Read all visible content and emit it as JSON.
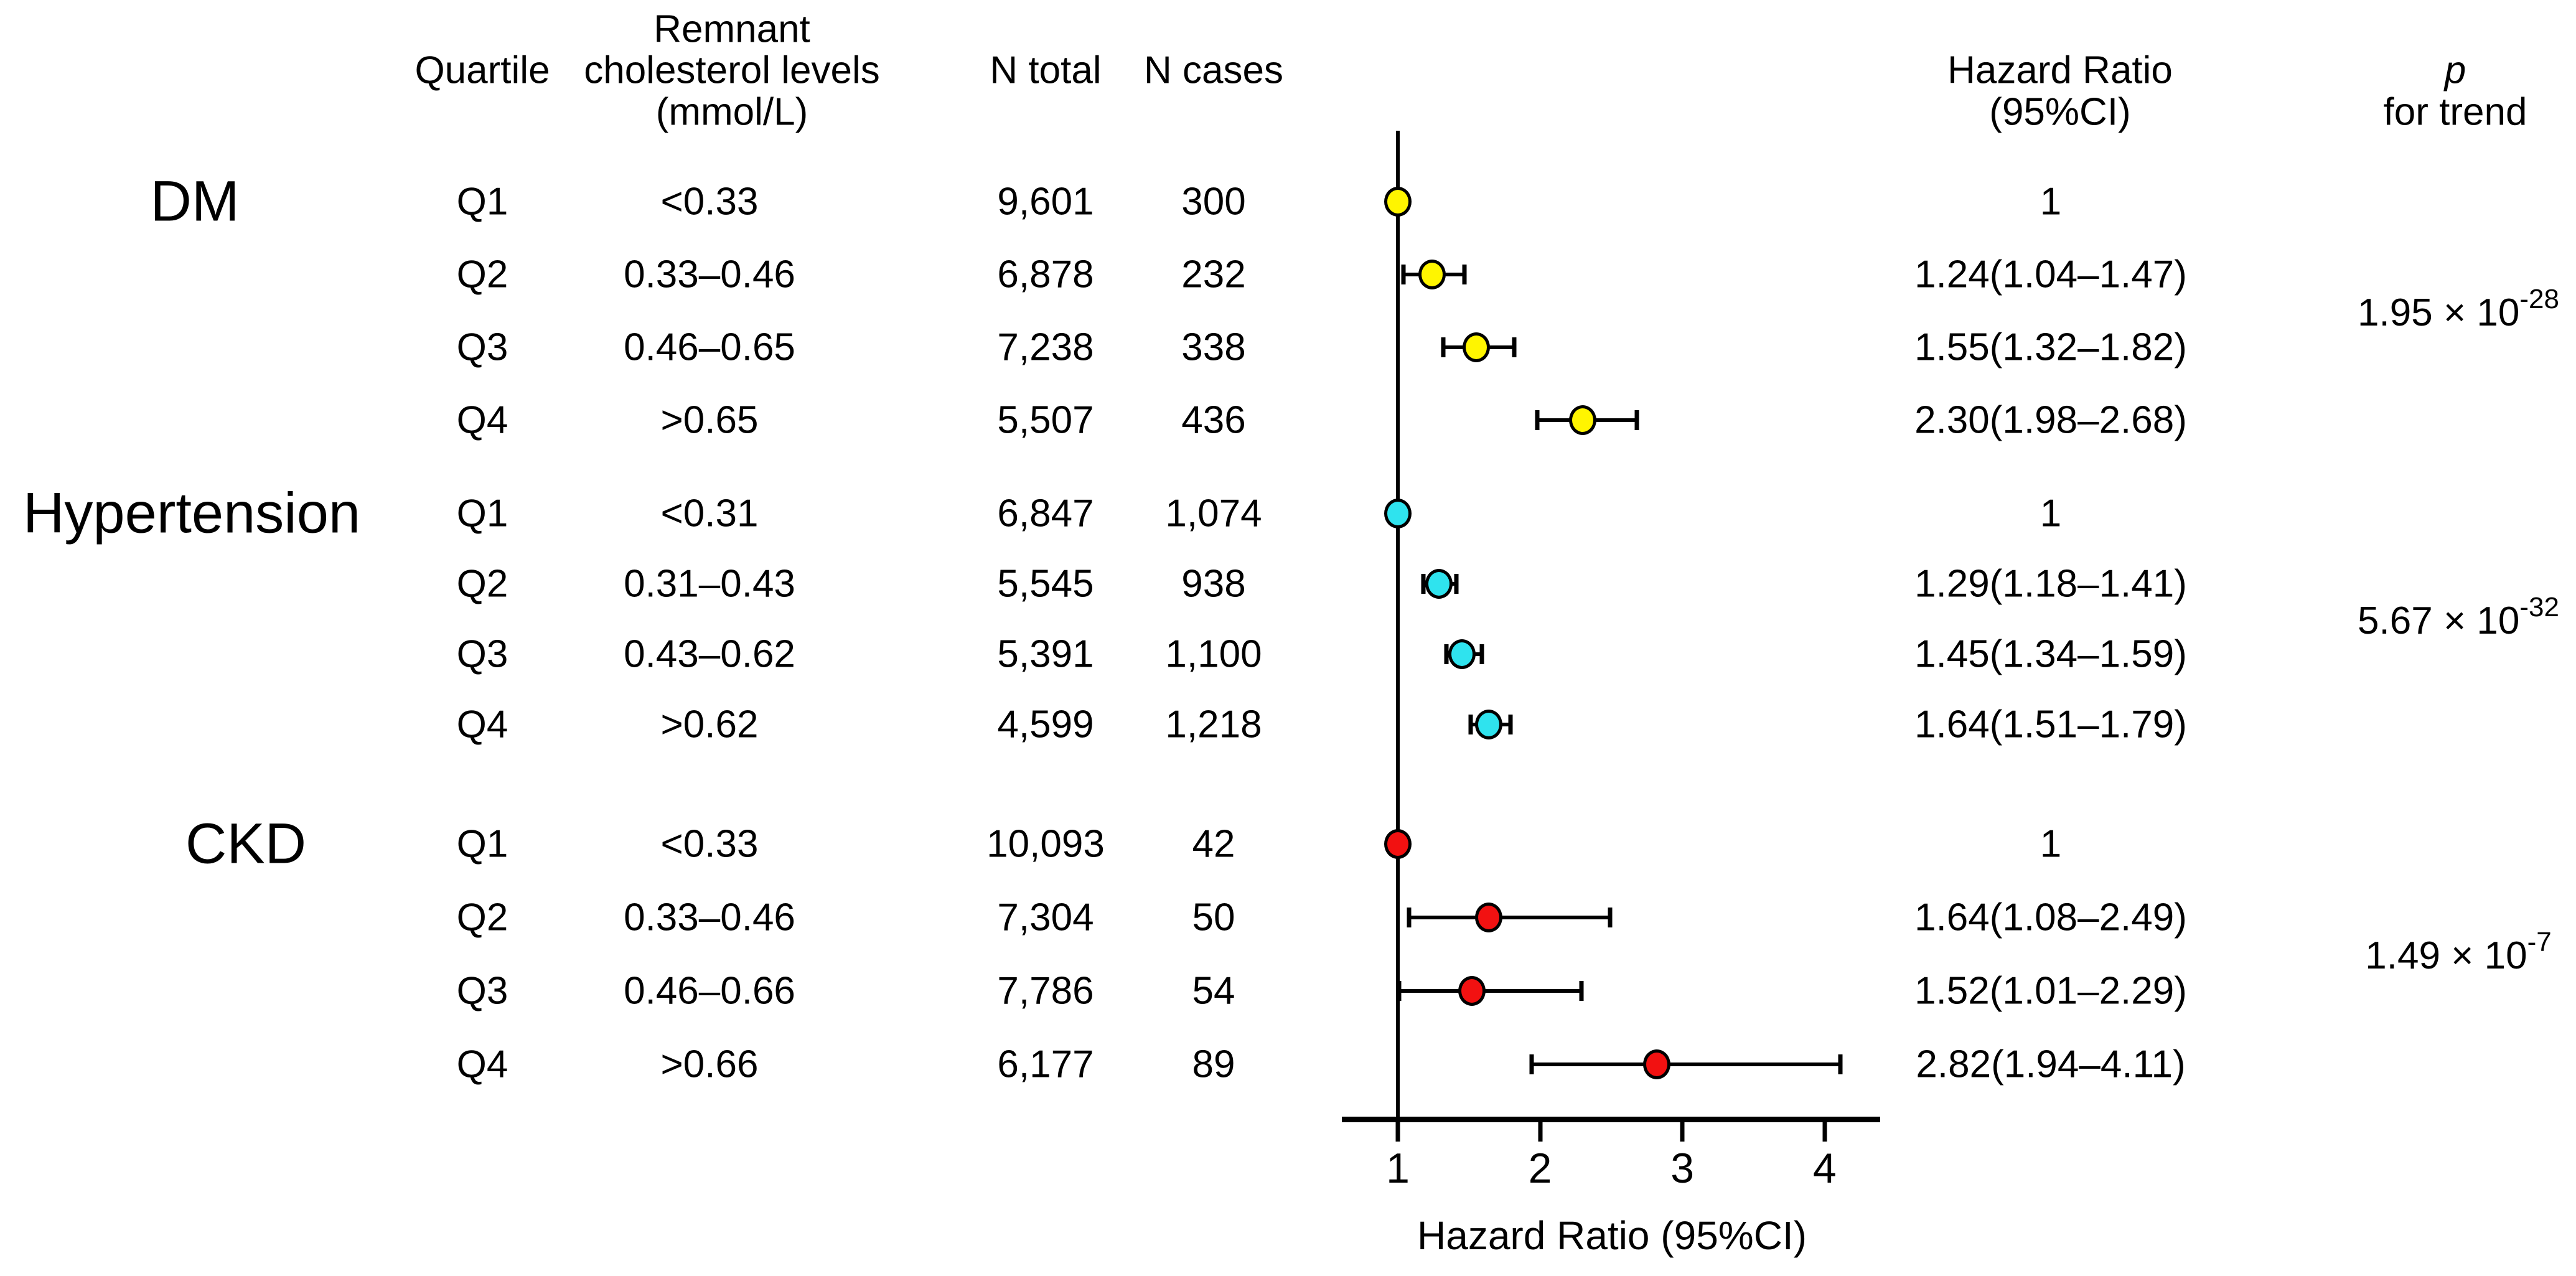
{
  "header": {
    "col_quartile": "Quartile",
    "col_chol_line1": "Remnant",
    "col_chol_line2": "cholesterol levels",
    "col_chol_line3": "(mmol/L)",
    "col_n_total": "N total",
    "col_n_cases": "N cases",
    "col_hr_line1": "Hazard Ratio",
    "col_hr_line2": "(95%CI)",
    "col_p_line1": "p",
    "col_p_line2": "for trend"
  },
  "axis": {
    "label": "Hazard Ratio (95%CI)",
    "ticks": [
      "1",
      "2",
      "3",
      "4"
    ]
  },
  "groups": [
    {
      "label": "DM",
      "marker_color": "#FFF500",
      "p_mantissa": "1.95 × 10",
      "p_exponent": "-28",
      "rows": [
        {
          "quartile": "Q1",
          "range": "<0.33",
          "n_total": "9,601",
          "n_cases": "300",
          "hr": 1.0,
          "lo": null,
          "hi": null,
          "hr_text": "1"
        },
        {
          "quartile": "Q2",
          "range": "0.33–0.46",
          "n_total": "6,878",
          "n_cases": "232",
          "hr": 1.24,
          "lo": 1.04,
          "hi": 1.47,
          "hr_text": "1.24(1.04–1.47)"
        },
        {
          "quartile": "Q3",
          "range": "0.46–0.65",
          "n_total": "7,238",
          "n_cases": "338",
          "hr": 1.55,
          "lo": 1.32,
          "hi": 1.82,
          "hr_text": "1.55(1.32–1.82)"
        },
        {
          "quartile": "Q4",
          "range": ">0.65",
          "n_total": "5,507",
          "n_cases": "436",
          "hr": 2.3,
          "lo": 1.98,
          "hi": 2.68,
          "hr_text": "2.30(1.98–2.68)"
        }
      ]
    },
    {
      "label": "Hypertension",
      "marker_color": "#2FE3EE",
      "p_mantissa": "5.67 × 10",
      "p_exponent": "-32",
      "rows": [
        {
          "quartile": "Q1",
          "range": "<0.31",
          "n_total": "6,847",
          "n_cases": "1,074",
          "hr": 1.0,
          "lo": null,
          "hi": null,
          "hr_text": "1"
        },
        {
          "quartile": "Q2",
          "range": "0.31–0.43",
          "n_total": "5,545",
          "n_cases": "938",
          "hr": 1.29,
          "lo": 1.18,
          "hi": 1.41,
          "hr_text": "1.29(1.18–1.41)"
        },
        {
          "quartile": "Q3",
          "range": "0.43–0.62",
          "n_total": "5,391",
          "n_cases": "1,100",
          "hr": 1.45,
          "lo": 1.34,
          "hi": 1.59,
          "hr_text": "1.45(1.34–1.59)"
        },
        {
          "quartile": "Q4",
          "range": ">0.62",
          "n_total": "4,599",
          "n_cases": "1,218",
          "hr": 1.64,
          "lo": 1.51,
          "hi": 1.79,
          "hr_text": "1.64(1.51–1.79)"
        }
      ]
    },
    {
      "label": "CKD",
      "marker_color": "#F21111",
      "p_mantissa": "1.49 × 10",
      "p_exponent": "-7",
      "rows": [
        {
          "quartile": "Q1",
          "range": "<0.33",
          "n_total": "10,093",
          "n_cases": "42",
          "hr": 1.0,
          "lo": null,
          "hi": null,
          "hr_text": "1"
        },
        {
          "quartile": "Q2",
          "range": "0.33–0.46",
          "n_total": "7,304",
          "n_cases": "50",
          "hr": 1.64,
          "lo": 1.08,
          "hi": 2.49,
          "hr_text": "1.64(1.08–2.49)"
        },
        {
          "quartile": "Q3",
          "range": "0.46–0.66",
          "n_total": "7,786",
          "n_cases": "54",
          "hr": 1.52,
          "lo": 1.01,
          "hi": 2.29,
          "hr_text": "1.52(1.01–2.29)"
        },
        {
          "quartile": "Q4",
          "range": ">0.66",
          "n_total": "6,177",
          "n_cases": "89",
          "hr": 2.82,
          "lo": 1.94,
          "hi": 4.11,
          "hr_text": "2.82(1.94–4.11)"
        }
      ]
    }
  ],
  "chart_data": {
    "type": "scatter",
    "subtype": "forest-plot",
    "title": "",
    "xlabel": "Hazard Ratio (95%CI)",
    "xticks": [
      1,
      2,
      3,
      4
    ],
    "xlim": [
      0.6,
      4.4
    ],
    "reference_line_x": 1,
    "grid": false,
    "legend_position": "none",
    "categories": [
      "Q1",
      "Q2",
      "Q3",
      "Q4"
    ],
    "series": [
      {
        "name": "DM",
        "color": "#FFF500",
        "hr": [
          1.0,
          1.24,
          1.55,
          2.3
        ],
        "ci_low": [
          null,
          1.04,
          1.32,
          1.98
        ],
        "ci_high": [
          null,
          1.47,
          1.82,
          2.68
        ],
        "p_for_trend": "1.95 × 10^-28"
      },
      {
        "name": "Hypertension",
        "color": "#2FE3EE",
        "hr": [
          1.0,
          1.29,
          1.45,
          1.64
        ],
        "ci_low": [
          null,
          1.18,
          1.34,
          1.51
        ],
        "ci_high": [
          null,
          1.41,
          1.59,
          1.79
        ],
        "p_for_trend": "5.67 × 10^-32"
      },
      {
        "name": "CKD",
        "color": "#F21111",
        "hr": [
          1.0,
          1.64,
          1.52,
          2.82
        ],
        "ci_low": [
          null,
          1.08,
          1.01,
          1.94
        ],
        "ci_high": [
          null,
          2.49,
          2.29,
          4.11
        ],
        "p_for_trend": "1.49 × 10^-7"
      }
    ]
  }
}
